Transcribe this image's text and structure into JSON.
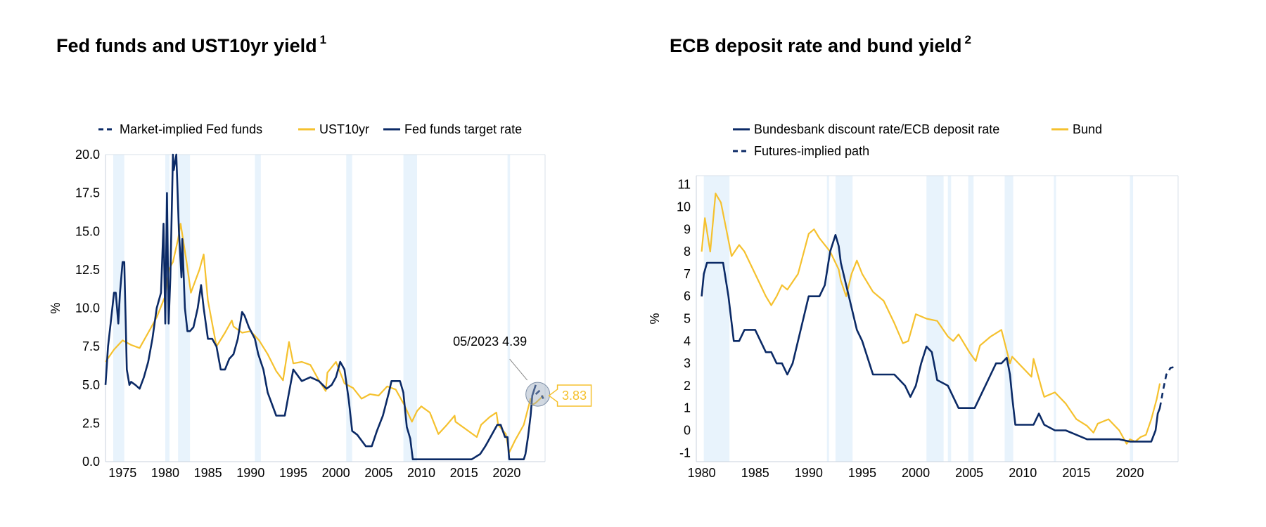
{
  "colors": {
    "navy": "#0b2a66",
    "yellow": "#f5c12e",
    "shade": "#e8f3fc",
    "grid": "#d9e2ea"
  },
  "chart_data": [
    {
      "type": "line",
      "title": "Fed funds and UST10yr yield",
      "footnote": "1",
      "ylabel": "%",
      "xlim": [
        1973,
        2024.5
      ],
      "ylim": [
        0,
        20
      ],
      "xticks": [
        "1975",
        "1980",
        "1985",
        "1990",
        "1995",
        "2000",
        "2005",
        "2010",
        "2015",
        "2020"
      ],
      "xtick_values": [
        1975,
        1980,
        1985,
        1990,
        1995,
        2000,
        2005,
        2010,
        2015,
        2020
      ],
      "yticks": [
        "0.0",
        "2.5",
        "5.0",
        "7.5",
        "10.0",
        "12.5",
        "15.0",
        "17.5",
        "20.0"
      ],
      "ytick_values": [
        0,
        2.5,
        5,
        7.5,
        10,
        12.5,
        15,
        17.5,
        20
      ],
      "legend": [
        "Market-implied Fed funds",
        "UST10yr",
        "Fed funds target rate"
      ],
      "recessions": [
        [
          1973.9,
          1975.2
        ],
        [
          1980.0,
          1980.5
        ],
        [
          1981.5,
          1982.9
        ],
        [
          1990.5,
          1991.2
        ],
        [
          2001.2,
          2001.9
        ],
        [
          2007.9,
          2009.5
        ],
        [
          2020.1,
          2020.4
        ]
      ],
      "annotation": {
        "label": "05/2023 4.39",
        "x": 2023.4,
        "y": 4.39
      },
      "last_value_label": "3.83",
      "series": [
        {
          "name": "Fed funds target rate",
          "style": "solid",
          "color": "navy",
          "x": [
            1973,
            1973.3,
            1973.6,
            1974,
            1974.2,
            1974.5,
            1974.7,
            1975,
            1975.2,
            1975.5,
            1975.8,
            1976,
            1976.5,
            1977,
            1977.5,
            1978,
            1978.5,
            1979,
            1979.5,
            1979.8,
            1980,
            1980.2,
            1980.4,
            1980.6,
            1980.9,
            1981,
            1981.3,
            1981.6,
            1981.9,
            1982,
            1982.3,
            1982.6,
            1982.9,
            1983.3,
            1983.8,
            1984.2,
            1984.5,
            1985,
            1985.5,
            1986,
            1986.5,
            1987,
            1987.5,
            1988,
            1988.5,
            1989,
            1989.3,
            1989.8,
            1990.5,
            1990.9,
            1991.5,
            1992,
            1993,
            1994,
            1994.5,
            1995,
            1996,
            1997,
            1998,
            1998.9,
            1999.5,
            2000,
            2000.5,
            2001,
            2001.5,
            2001.9,
            2002.5,
            2003.5,
            2004.2,
            2004.8,
            2005.5,
            2006.2,
            2006.5,
            2007,
            2007.5,
            2007.9,
            2008.3,
            2008.7,
            2009,
            2012,
            2015.9,
            2016.9,
            2017.5,
            2018,
            2018.9,
            2019.3,
            2019.8,
            2020.1,
            2020.3,
            2021,
            2022,
            2022.2,
            2022.5,
            2022.8,
            2023,
            2023.4
          ],
          "y": [
            5,
            7.5,
            9,
            11,
            11,
            9,
            11,
            13,
            13,
            6,
            5,
            5.2,
            5,
            4.75,
            5.5,
            6.5,
            8,
            10,
            11,
            15.5,
            9,
            17.5,
            9,
            12,
            20,
            19,
            20,
            15,
            12,
            14.5,
            10,
            8.5,
            8.5,
            8.75,
            10,
            11.5,
            10,
            8,
            8,
            7.5,
            6,
            6,
            6.7,
            7,
            8,
            9.75,
            9.5,
            8.75,
            8,
            7,
            6,
            4.5,
            3,
            3,
            4.5,
            6,
            5.25,
            5.5,
            5.25,
            4.75,
            5,
            5.5,
            6.5,
            6,
            4,
            2,
            1.75,
            1,
            1,
            2,
            3,
            4.5,
            5.25,
            5.25,
            5.25,
            4.5,
            2.25,
            1.5,
            0.15,
            0.15,
            0.15,
            0.5,
            1,
            1.5,
            2.4,
            2.4,
            1.6,
            1.6,
            0.15,
            0.15,
            0.15,
            0.5,
            1.6,
            3,
            4.3,
            5
          ]
        },
        {
          "name": "UST10yr",
          "style": "solid",
          "color": "yellow",
          "x": [
            1973,
            1974,
            1975,
            1976,
            1977,
            1978,
            1979,
            1980,
            1980.4,
            1980.9,
            1981.5,
            1981.8,
            1982.5,
            1983,
            1984,
            1984.5,
            1985,
            1986,
            1987,
            1987.8,
            1988,
            1989,
            1990,
            1991,
            1992,
            1993,
            1993.8,
            1994.5,
            1995,
            1996,
            1997,
            1998,
            1998.8,
            1999,
            2000,
            2001,
            2002,
            2003,
            2004,
            2005,
            2006,
            2007,
            2008,
            2008.9,
            2009.5,
            2010,
            2011,
            2012,
            2013,
            2013.9,
            2014,
            2015,
            2016.5,
            2017,
            2018,
            2018.8,
            2019,
            2019.9,
            2020.3,
            2021,
            2022,
            2022.8,
            2023,
            2023.4,
            2024.3
          ],
          "y": [
            6.5,
            7.3,
            7.9,
            7.6,
            7.4,
            8.4,
            9.4,
            10.8,
            12.5,
            13,
            14.5,
            15.5,
            13,
            11,
            12.5,
            13.5,
            10.5,
            7.5,
            8.4,
            9.2,
            8.8,
            8.4,
            8.5,
            7.9,
            7,
            5.9,
            5.3,
            7.8,
            6.4,
            6.5,
            6.3,
            5.3,
            4.6,
            5.8,
            6.5,
            5.1,
            4.8,
            4.1,
            4.4,
            4.3,
            4.9,
            4.7,
            3.7,
            2.6,
            3.3,
            3.6,
            3.2,
            1.8,
            2.4,
            3,
            2.6,
            2.2,
            1.6,
            2.4,
            2.9,
            3.2,
            2.4,
            1.8,
            0.6,
            1.4,
            2.4,
            4.1,
            3.7,
            3.83,
            4.3
          ]
        },
        {
          "name": "Market-implied Fed funds",
          "style": "dashed",
          "color": "navy",
          "x": [
            2023.4,
            2023.8,
            2024.3
          ],
          "y": [
            4.39,
            4.6,
            4.1
          ]
        }
      ]
    },
    {
      "type": "line",
      "title": "ECB deposit rate and bund yield",
      "footnote": "2",
      "ylabel": "%",
      "xlim": [
        1979.5,
        2024.5
      ],
      "ylim": [
        -1.4,
        11.4
      ],
      "xticks": [
        "1980",
        "1985",
        "1990",
        "1995",
        "2000",
        "2005",
        "2010",
        "2015",
        "2020"
      ],
      "xtick_values": [
        1980,
        1985,
        1990,
        1995,
        2000,
        2005,
        2010,
        2015,
        2020
      ],
      "yticks": [
        "-1",
        "0",
        "1",
        "2",
        "3",
        "4",
        "5",
        "6",
        "7",
        "8",
        "9",
        "10",
        "11"
      ],
      "ytick_values": [
        -1,
        0,
        1,
        2,
        3,
        4,
        5,
        6,
        7,
        8,
        9,
        10,
        11
      ],
      "legend": [
        "Bundesbank discount rate/ECB deposit rate",
        "Bund",
        "Futures-implied path"
      ],
      "recessions": [
        [
          1980.2,
          1982.6
        ],
        [
          1991.7,
          1991.9
        ],
        [
          1992.5,
          1994.1
        ],
        [
          2001.0,
          2002.6
        ],
        [
          2003.0,
          2003.3
        ],
        [
          2004.9,
          2005.4
        ],
        [
          2008.3,
          2009.1
        ],
        [
          2012.9,
          2013.1
        ],
        [
          2020.0,
          2020.3
        ]
      ],
      "series": [
        {
          "name": "Bundesbank discount rate/ECB deposit rate",
          "style": "solid",
          "color": "navy",
          "x": [
            1980,
            1980.2,
            1980.5,
            1981,
            1982,
            1982.5,
            1983,
            1983.5,
            1984,
            1985,
            1985.5,
            1986,
            1986.5,
            1987,
            1987.5,
            1988,
            1988.5,
            1989,
            1989.5,
            1990,
            1991,
            1991.5,
            1992,
            1992.5,
            1992.8,
            1993,
            1993.5,
            1994,
            1994.5,
            1995,
            1996,
            1997,
            1998,
            1999,
            1999.5,
            2000,
            2000.5,
            2001,
            2001.5,
            2001.8,
            2002,
            2003,
            2004,
            2005,
            2005.5,
            2006,
            2006.5,
            2007,
            2007.5,
            2008,
            2008.5,
            2008.8,
            2009,
            2009.3,
            2010,
            2011,
            2011.5,
            2012,
            2013,
            2014,
            2015,
            2016,
            2017,
            2018,
            2019,
            2020,
            2021,
            2022,
            2022.4,
            2022.6,
            2022.8
          ],
          "y": [
            6,
            7,
            7.5,
            7.5,
            7.5,
            6,
            4,
            4,
            4.5,
            4.5,
            4,
            3.5,
            3.5,
            3,
            3,
            2.5,
            3,
            4,
            5,
            6,
            6,
            6.5,
            8,
            8.75,
            8.25,
            7.5,
            6.5,
            5.5,
            4.5,
            4,
            2.5,
            2.5,
            2.5,
            2,
            1.5,
            2,
            3,
            3.75,
            3.5,
            2.75,
            2.25,
            2,
            1,
            1,
            1,
            1.5,
            2,
            2.5,
            3,
            3,
            3.25,
            2.5,
            1.5,
            0.25,
            0.25,
            0.25,
            0.75,
            0.25,
            0,
            0,
            -0.2,
            -0.4,
            -0.4,
            -0.4,
            -0.4,
            -0.5,
            -0.5,
            -0.5,
            0,
            0.75,
            1
          ]
        },
        {
          "name": "Bund",
          "style": "solid",
          "color": "yellow",
          "x": [
            1980,
            1980.3,
            1980.8,
            1981.3,
            1981.8,
            1982.3,
            1982.8,
            1983.5,
            1984,
            1985,
            1986,
            1986.5,
            1987,
            1987.5,
            1988,
            1989,
            1990,
            1990.5,
            1991,
            1992,
            1992.8,
            1993,
            1993.5,
            1994,
            1994.5,
            1995,
            1996,
            1997,
            1998,
            1998.8,
            1999.3,
            2000,
            2001,
            2002,
            2003,
            2003.5,
            2004,
            2005,
            2005.6,
            2006,
            2007,
            2008,
            2008.8,
            2009,
            2010,
            2010.8,
            2011,
            2011.8,
            2012,
            2013,
            2014,
            2015,
            2016,
            2016.6,
            2017,
            2018,
            2019,
            2019.7,
            2020,
            2020.5,
            2021,
            2021.5,
            2022,
            2022.5,
            2022.8
          ],
          "y": [
            8,
            9.5,
            8,
            10.6,
            10.2,
            9,
            7.8,
            8.3,
            8,
            7,
            6,
            5.6,
            6,
            6.5,
            6.3,
            7,
            8.8,
            9,
            8.6,
            8,
            7.2,
            6.7,
            6,
            7,
            7.6,
            7,
            6.2,
            5.8,
            4.8,
            3.9,
            4,
            5.2,
            5,
            4.9,
            4.2,
            4,
            4.3,
            3.5,
            3.1,
            3.8,
            4.2,
            4.5,
            3,
            3.3,
            2.8,
            2.4,
            3.2,
            1.8,
            1.5,
            1.7,
            1.2,
            0.5,
            0.2,
            -0.1,
            0.3,
            0.5,
            0,
            -0.6,
            -0.4,
            -0.5,
            -0.3,
            -0.2,
            0.5,
            1.4,
            2.1
          ]
        },
        {
          "name": "Futures-implied path",
          "style": "dashed",
          "color": "navy",
          "x": [
            2022.8,
            2023.1,
            2023.4,
            2023.8,
            2024.3
          ],
          "y": [
            1,
            1.8,
            2.5,
            2.8,
            2.85
          ]
        }
      ]
    }
  ]
}
